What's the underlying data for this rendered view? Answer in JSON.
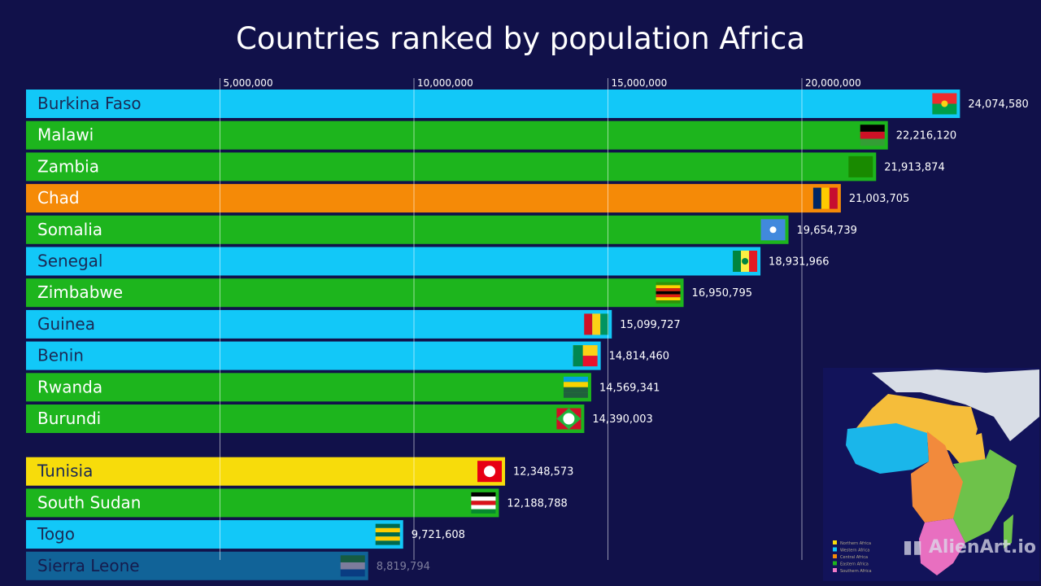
{
  "chart_data": {
    "type": "bar",
    "orientation": "horizontal",
    "title": "Countries ranked by population Africa",
    "xlim": [
      0,
      24500000
    ],
    "x_ticks": [
      5000000,
      10000000,
      15000000,
      20000000
    ],
    "x_tick_labels": [
      "5,000,000",
      "10,000,000",
      "15,000,000",
      "20,000,000"
    ],
    "grid": true,
    "categories": [
      "Burkina Faso",
      "Malawi",
      "Zambia",
      "Chad",
      "Somalia",
      "Senegal",
      "Zimbabwe",
      "Guinea",
      "Benin",
      "Rwanda",
      "Burundi",
      "Tunisia",
      "South Sudan",
      "Togo",
      "Sierra Leone"
    ],
    "values": [
      24074580,
      22216120,
      21913874,
      21003705,
      19654739,
      18931966,
      16950795,
      15099727,
      14814460,
      14569341,
      14390003,
      12348573,
      12188788,
      9721608,
      8819794
    ],
    "value_labels": [
      "24,074,580",
      "22,216,120",
      "21,913,874",
      "21,003,705",
      "19,654,739",
      "18,931,966",
      "16,950,795",
      "15,099,727",
      "14,814,460",
      "14,569,341",
      "14,390,003",
      "12,348,573",
      "12,188,788",
      "9,721,608",
      "8,819,794"
    ],
    "regions": [
      "Western Africa",
      "Eastern Africa",
      "Eastern Africa",
      "Central Africa",
      "Eastern Africa",
      "Western Africa",
      "Eastern Africa",
      "Western Africa",
      "Western Africa",
      "Eastern Africa",
      "Eastern Africa",
      "Northern Africa",
      "Eastern Africa",
      "Western Africa",
      "Western Africa"
    ]
  },
  "colors": {
    "background": "#11114a",
    "Northern Africa": "#f7dc0b",
    "Western Africa": "#12c8f8",
    "Central Africa": "#f58a07",
    "Eastern Africa": "#1db51d",
    "Southern Africa": "#f07ac8"
  },
  "map_legend": [
    "Northern Africa",
    "Western Africa",
    "Central Africa",
    "Eastern Africa",
    "Southern Africa"
  ],
  "watermark": "AlienArt.io"
}
